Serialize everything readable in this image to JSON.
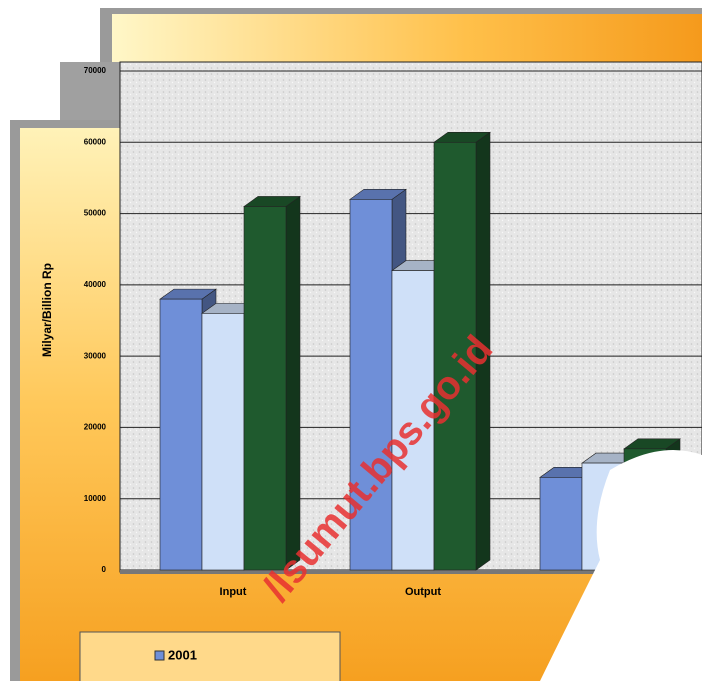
{
  "chart_data": {
    "type": "bar3d",
    "y_label": "Milyar/Billion Rp",
    "categories": [
      "Input",
      "Output",
      null
    ],
    "series": [
      {
        "name": "2001",
        "color": "#6f8fd8",
        "values": [
          38000,
          52000,
          13000
        ]
      },
      {
        "color": "#cfe0f8",
        "values": [
          36000,
          42000,
          15000
        ]
      },
      {
        "color": "#1f5a2e",
        "values": [
          51000,
          60000,
          17000
        ]
      }
    ],
    "ylim": [
      0,
      70000
    ],
    "yticks": [
      0,
      10000,
      20000,
      30000,
      40000,
      50000,
      60000,
      70000
    ],
    "grid": true,
    "watermark": "/lsumut.bps.go.id"
  }
}
